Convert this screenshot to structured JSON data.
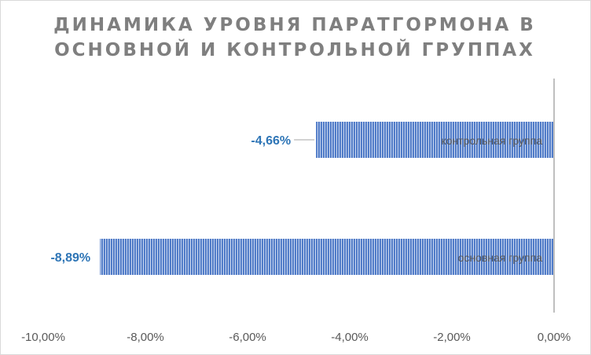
{
  "chart_data": {
    "type": "bar",
    "orientation": "horizontal",
    "title_lines": [
      "ДИНАМИКА  УРОВНЯ ПАРАТГОРМОНА В",
      "ОСНОВНОЙ И КОНТРОЛЬНОЙ ГРУППАХ"
    ],
    "categories": [
      "контрольная группа",
      "основная группа"
    ],
    "values": [
      -4.66,
      -8.89
    ],
    "data_labels": [
      "-4,66%",
      "-8,89%"
    ],
    "xlim": [
      -10,
      0
    ],
    "x_ticks": [
      -10,
      -8,
      -6,
      -4,
      -2,
      0
    ],
    "x_tick_labels": [
      "-10,00%",
      "-8,00%",
      "-6,00%",
      "-4,00%",
      "-2,00%",
      "0,00%"
    ],
    "grid": false,
    "legend": "none",
    "colors": {
      "bar_fill": "#4472c4",
      "bar_stripe": "#c9d6ef",
      "data_label": "#2e75b6",
      "axis": "#bfbfbf"
    }
  }
}
